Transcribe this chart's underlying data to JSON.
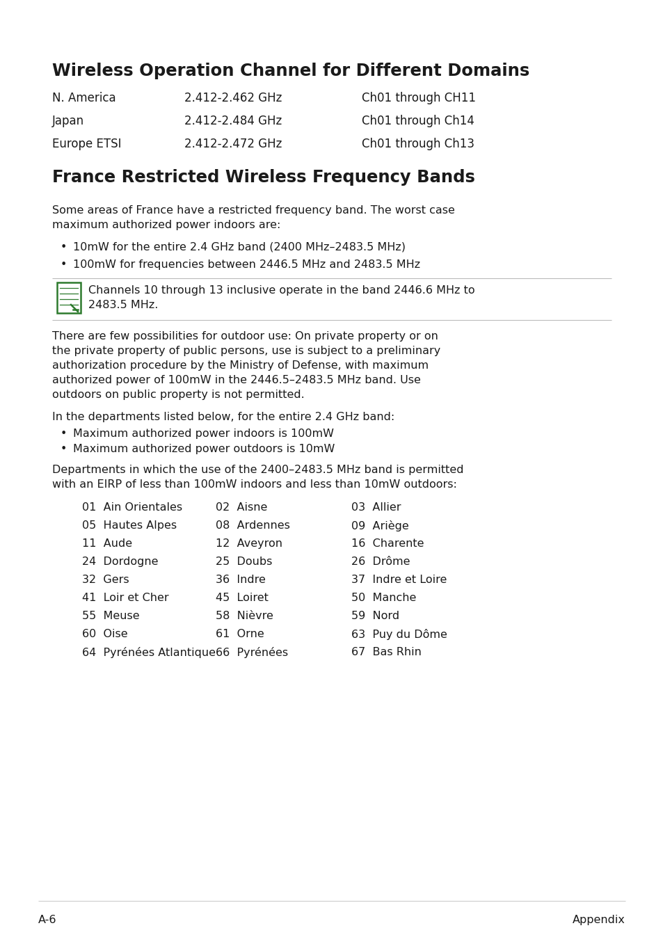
{
  "bg_color": "#ffffff",
  "title1": "Wireless Operation Channel for Different Domains",
  "table_rows": [
    [
      "N. America",
      "2.412-2.462 GHz",
      "Ch01 through CH11"
    ],
    [
      "Japan",
      "2.412-2.484 GHz",
      "Ch01 through Ch14"
    ],
    [
      "Europe ETSI",
      "2.412-2.472 GHz",
      "Ch01 through Ch13"
    ]
  ],
  "title2": "France Restricted Wireless Frequency Bands",
  "para1_line1": "Some areas of France have a restricted frequency band. The worst case",
  "para1_line2": "maximum authorized power indoors are:",
  "bullet1": "10mW for the entire 2.4 GHz band (2400 MHz–2483.5 MHz)",
  "bullet2": "100mW for frequencies between 2446.5 MHz and 2483.5 MHz",
  "note_line1": "Channels 10 through 13 inclusive operate in the band 2446.6 MHz to",
  "note_line2": "2483.5 MHz.",
  "para2_line1": "There are few possibilities for outdoor use: On private property or on",
  "para2_line2": "the private property of public persons, use is subject to a preliminary",
  "para2_line3": "authorization procedure by the Ministry of Defense, with maximum",
  "para2_line4": "authorized power of 100mW in the 2446.5–2483.5 MHz band. Use",
  "para2_line5": "outdoors on public property is not permitted.",
  "para3": "In the departments listed below, for the entire 2.4 GHz band:",
  "bullet3": "Maximum authorized power indoors is 100mW",
  "bullet4": "Maximum authorized power outdoors is 10mW",
  "para4_line1": "Departments in which the use of the 2400–2483.5 MHz band is permitted",
  "para4_line2": "with an EIRP of less than 100mW indoors and less than 10mW outdoors:",
  "dept_rows": [
    [
      "01  Ain Orientales",
      "02  Aisne",
      "03  Allier"
    ],
    [
      "05  Hautes Alpes",
      "08  Ardennes",
      "09  Ariège"
    ],
    [
      "11  Aude",
      "12  Aveyron",
      "16  Charente"
    ],
    [
      "24  Dordogne",
      "25  Doubs",
      "26  Drôme"
    ],
    [
      "32  Gers",
      "36  Indre",
      "37  Indre et Loire"
    ],
    [
      "41  Loir et Cher",
      "45  Loiret",
      "50  Manche"
    ],
    [
      "55  Meuse",
      "58  Nièvre",
      "59  Nord"
    ],
    [
      "60  Oise",
      "61  Orne",
      "63  Puy du Dôme"
    ],
    [
      "64  Pyrénées Atlantique",
      "66  Pyrénées",
      "67  Bas Rhin"
    ]
  ],
  "footer_left": "A-6",
  "footer_right": "Appendix",
  "text_color": "#000000",
  "note_icon_color": "#2d7a2d",
  "line_color": "#bbbbbb"
}
